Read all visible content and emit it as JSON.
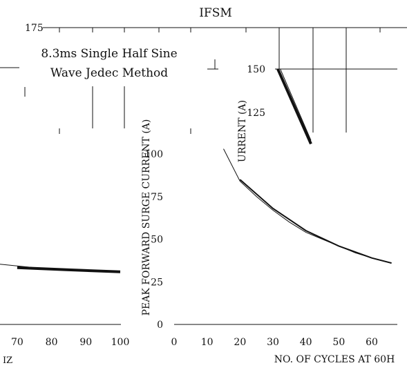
{
  "chart_data": [
    {
      "id": "left",
      "type": "line",
      "title": "",
      "xlabel": "",
      "x_tick_labels": [
        "70",
        "80",
        "90",
        "100"
      ],
      "y_max_label": "175",
      "footer": "IZ",
      "note": [
        "8.3ms Single Half Sine",
        "Wave Jedec Method"
      ],
      "series": [
        {
          "x": [
            65,
            75,
            85,
            100
          ],
          "y": [
            35.5,
            33.5,
            32.5,
            31.0
          ],
          "style": "thin"
        },
        {
          "x": [
            70,
            85,
            100
          ],
          "y": [
            33.5,
            32.2,
            31.0
          ],
          "style": "thick"
        }
      ],
      "xlim": [
        65,
        100
      ],
      "ylim": [
        0,
        175
      ]
    },
    {
      "id": "right",
      "type": "line",
      "title": "IFSM",
      "xlabel": "NO. OF CYCLES AT 60H",
      "ylabel": "PEAK FORWARD SURGE CURRENT (A)",
      "ylabel_fragment": "URRENT (A)",
      "x_tick_labels": [
        "0",
        "10",
        "20",
        "30",
        "40",
        "50",
        "60"
      ],
      "y_tick_labels": [
        "0",
        "25",
        "50",
        "75",
        "100"
      ],
      "series": [
        {
          "x": [
            15,
            20,
            25,
            30,
            35,
            40,
            45,
            50,
            55,
            60,
            66
          ],
          "y": [
            103,
            84,
            75,
            67,
            60,
            54,
            50,
            46,
            42,
            39,
            36
          ],
          "style": "thin"
        },
        {
          "x": [
            20,
            30,
            40,
            50,
            60,
            66
          ],
          "y": [
            85,
            68,
            55,
            46,
            39,
            36
          ],
          "style": "thick"
        }
      ],
      "xlim": [
        -3,
        66
      ],
      "ylim": [
        0,
        150
      ]
    },
    {
      "id": "inset",
      "type": "line",
      "y_tick_labels": [
        "125",
        "150"
      ],
      "series": [
        {
          "x": [
            1,
            5
          ],
          "y": [
            150,
            107
          ],
          "style": "thick"
        },
        {
          "x": [
            1.3,
            5
          ],
          "y": [
            150,
            109
          ],
          "style": "thin"
        }
      ],
      "xlim": [
        0,
        10
      ],
      "ylim": [
        100,
        160
      ]
    }
  ]
}
